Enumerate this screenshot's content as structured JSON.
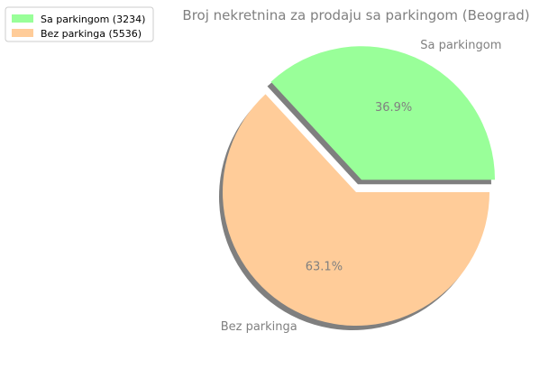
{
  "chart_data": {
    "type": "pie",
    "title": "Broj nekretnina za prodaju sa parkingom (Beograd)",
    "categories": [
      "Sa parkingom",
      "Bez parkinga"
    ],
    "values": [
      3234,
      5536
    ],
    "percent_labels": [
      "36.9%",
      "63.1%"
    ],
    "colors": [
      "#99ff99",
      "#ffcc99"
    ],
    "explode": [
      true,
      false
    ],
    "shadow": true,
    "legend": {
      "placement": "upper-left",
      "entries": [
        "Sa parkingom (3234)",
        "Bez parkinga (5536)"
      ]
    }
  }
}
